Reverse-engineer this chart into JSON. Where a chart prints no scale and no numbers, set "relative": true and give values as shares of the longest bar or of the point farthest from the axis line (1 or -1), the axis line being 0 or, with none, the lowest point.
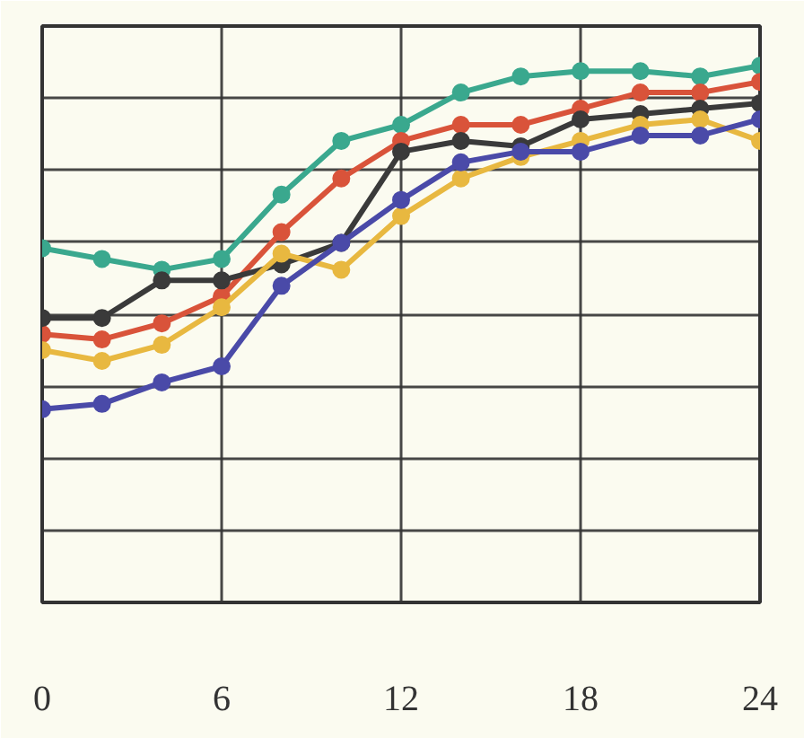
{
  "chart_data": {
    "type": "line",
    "relative": true,
    "x": [
      0,
      2,
      4,
      6,
      8,
      10,
      12,
      14,
      16,
      18,
      20,
      22,
      24
    ],
    "xlim": [
      0,
      24
    ],
    "xticks": [
      0,
      6,
      12,
      18,
      24
    ],
    "grid": true,
    "marker": "circle",
    "line_style": "solid",
    "series": [
      {
        "color": "#3aa88e",
        "values": [
          0.66,
          0.64,
          0.62,
          0.64,
          0.76,
          0.86,
          0.89,
          0.95,
          0.98,
          0.99,
          0.99,
          0.98,
          1
        ]
      },
      {
        "color": "#d9533a",
        "values": [
          0.5,
          0.49,
          0.52,
          0.57,
          0.69,
          0.79,
          0.86,
          0.89,
          0.89,
          0.92,
          0.95,
          0.95,
          0.97
        ]
      },
      {
        "color": "#3a3a3a",
        "values": [
          0.53,
          0.53,
          0.6,
          0.6,
          0.63,
          0.67,
          0.84,
          0.86,
          0.85,
          0.9,
          0.91,
          0.92,
          0.93
        ]
      },
      {
        "color": "#e8b840",
        "values": [
          0.47,
          0.45,
          0.48,
          0.55,
          0.65,
          0.62,
          0.72,
          0.79,
          0.83,
          0.86,
          0.89,
          0.9,
          0.86
        ]
      },
      {
        "color": "#4a4aa8",
        "values": [
          0.36,
          0.37,
          0.41,
          0.44,
          0.59,
          0.67,
          0.75,
          0.82,
          0.84,
          0.84,
          0.87,
          0.87,
          0.9
        ]
      }
    ]
  }
}
